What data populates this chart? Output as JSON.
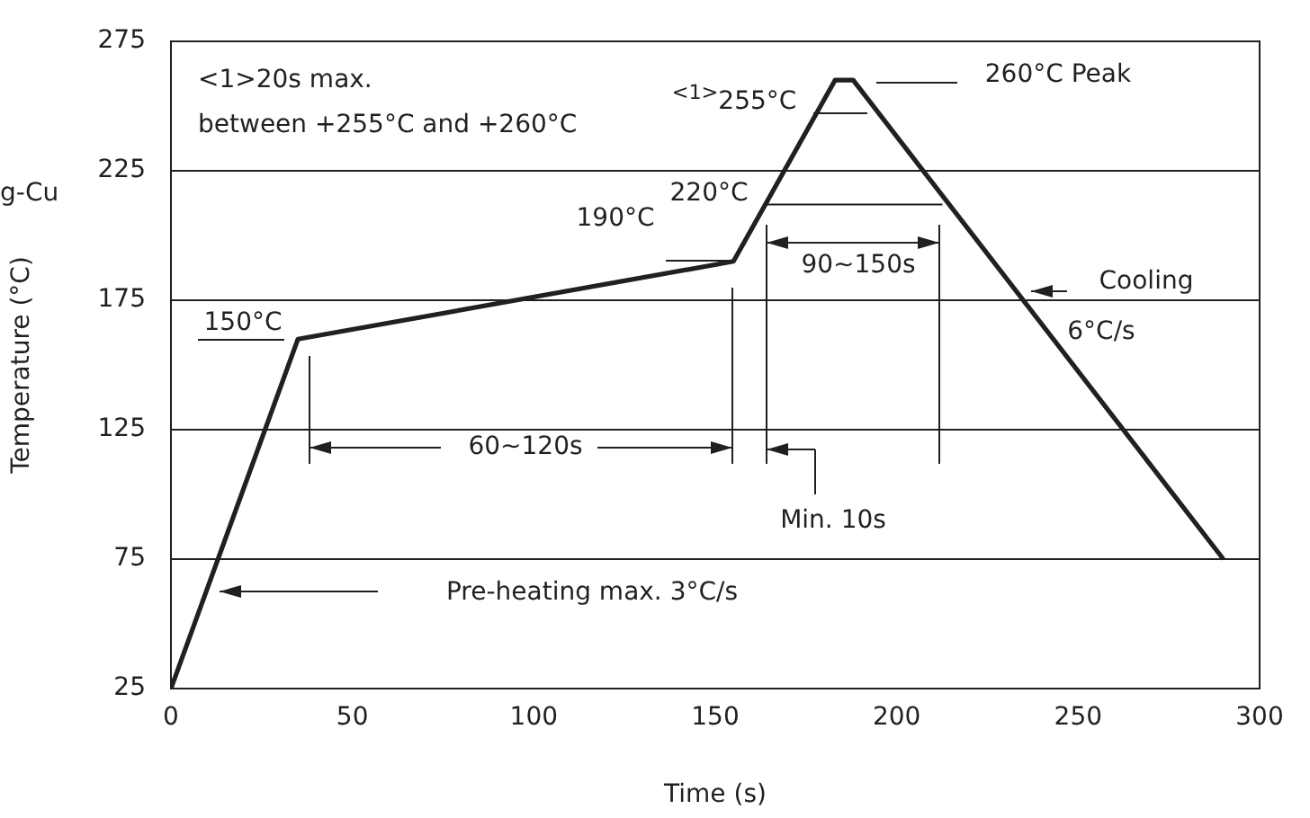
{
  "chart_data": {
    "type": "line",
    "xlabel": "Time (s)",
    "ylabel": "Temperature (°C)",
    "x": [
      0,
      35,
      155,
      183,
      188,
      290
    ],
    "series": [
      {
        "color": "#231f20",
        "values": [
          25,
          160,
          190,
          260,
          260,
          75
        ]
      }
    ],
    "xlim": [
      0,
      300
    ],
    "xticks": [
      0,
      50,
      100,
      150,
      200,
      250,
      300
    ],
    "ylim": [
      25,
      275
    ],
    "yticks": [
      25,
      75,
      125,
      175,
      225,
      275
    ],
    "grid": "y",
    "marker": "none",
    "line_style": "solid",
    "annotations": [
      "<1>20s max.",
      "between +255°C and +260°C",
      "g-Cu",
      "260°C Peak",
      "$^{<1>}$255°C",
      {
        "text": "220°C",
        "x": 164,
        "y": 212
      },
      "190°C",
      "150°C",
      "90~150s",
      "Cooling",
      "6°C/s",
      "60~120s",
      "Min. 10s",
      "Pre-heating max. 3°C/s"
    ]
  }
}
